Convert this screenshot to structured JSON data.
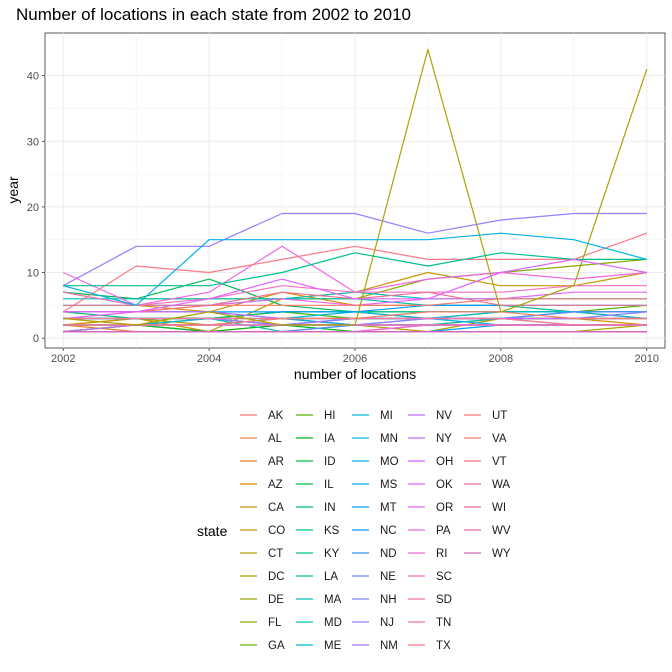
{
  "chart_data": {
    "type": "line",
    "title": "Number of locations in each state from 2002 to 2010",
    "xlabel": "number of locations",
    "ylabel": "year",
    "xlim": [
      2001.75,
      2010.25
    ],
    "ylim": [
      -1.5,
      46.5
    ],
    "x_ticks": [
      2002,
      2004,
      2006,
      2008,
      2010
    ],
    "y_ticks": [
      0,
      10,
      20,
      30,
      40
    ],
    "grid": true,
    "legend_position": "bottom",
    "legend_title": "state",
    "x": [
      2002,
      2003,
      2004,
      2005,
      2006,
      2007,
      2008,
      2009,
      2010
    ],
    "series": [
      {
        "name": "AK",
        "color": "#F8766D",
        "values": [
          2,
          2,
          2,
          3,
          2,
          2,
          2,
          2,
          2
        ]
      },
      {
        "name": "AL",
        "color": "#F17D50",
        "values": [
          1,
          2,
          1,
          1,
          1,
          1,
          1,
          1,
          1
        ]
      },
      {
        "name": "AR",
        "color": "#E88526",
        "values": [
          2,
          1,
          1,
          2,
          2,
          2,
          3,
          3,
          3
        ]
      },
      {
        "name": "AZ",
        "color": "#DE8C00",
        "values": [
          2,
          3,
          3,
          2,
          2,
          3,
          3,
          3,
          2
        ]
      },
      {
        "name": "CA",
        "color": "#D39200",
        "values": [
          7,
          5,
          4,
          7,
          5,
          5,
          5,
          4,
          3
        ]
      },
      {
        "name": "CO",
        "color": "#C79800",
        "values": [
          2,
          3,
          1,
          6,
          7,
          10,
          8,
          8,
          10
        ]
      },
      {
        "name": "CT",
        "color": "#B99E00",
        "values": [
          3,
          3,
          2,
          3,
          2,
          1,
          3,
          3,
          3
        ]
      },
      {
        "name": "DC",
        "color": "#AAA300",
        "values": [
          1,
          2,
          1,
          1,
          1,
          1,
          1,
          1,
          2
        ]
      },
      {
        "name": "DE",
        "color": "#99A800",
        "values": [
          2,
          2,
          3,
          2,
          3,
          3,
          3,
          3,
          3
        ]
      },
      {
        "name": "FL",
        "color": "#86AC00",
        "values": [
          7,
          6,
          6,
          6,
          6,
          9,
          10,
          11,
          12
        ]
      },
      {
        "name": "GA",
        "color": "#70B000",
        "values": [
          1,
          2,
          3,
          4,
          4,
          3,
          3,
          4,
          4
        ]
      },
      {
        "name": "HI",
        "color": "#53B400",
        "values": [
          3,
          3,
          3,
          4,
          3,
          3,
          4,
          4,
          5
        ]
      },
      {
        "name": "IA",
        "color": "#00B81F",
        "values": [
          1,
          1,
          1,
          2,
          1,
          1,
          1,
          1,
          1
        ]
      },
      {
        "name": "ID",
        "color": "#00BA42",
        "values": [
          1,
          2,
          1,
          1,
          1,
          2,
          2,
          2,
          2
        ]
      },
      {
        "name": "IL",
        "color": "#00BC5A",
        "values": [
          7,
          6,
          9,
          5,
          4,
          4,
          4,
          4,
          4
        ]
      },
      {
        "name": "IN",
        "color": "#00BE6E",
        "values": [
          3,
          3,
          3,
          3,
          3,
          3,
          3,
          2,
          2
        ]
      },
      {
        "name": "KS",
        "color": "#00C080",
        "values": [
          4,
          3,
          3,
          4,
          4,
          4,
          4,
          4,
          4
        ]
      },
      {
        "name": "KY",
        "color": "#00C090",
        "values": [
          3,
          3,
          3,
          3,
          3,
          4,
          4,
          4,
          4
        ]
      },
      {
        "name": "LA",
        "color": "#00C1A0",
        "values": [
          3,
          3,
          3,
          1,
          2,
          2,
          3,
          3,
          3
        ]
      },
      {
        "name": "MA",
        "color": "#00C0AF",
        "values": [
          5,
          5,
          5,
          6,
          6,
          5,
          5,
          4,
          4
        ]
      },
      {
        "name": "MD",
        "color": "#00BFBC",
        "values": [
          6,
          6,
          6,
          6,
          7,
          6,
          6,
          6,
          6
        ]
      },
      {
        "name": "ME",
        "color": "#00BDC9",
        "values": [
          2,
          2,
          2,
          2,
          2,
          2,
          2,
          2,
          2
        ]
      },
      {
        "name": "MI",
        "color": "#00BAD5",
        "values": [
          4,
          4,
          4,
          3,
          4,
          3,
          4,
          4,
          3
        ]
      },
      {
        "name": "MN",
        "color": "#00B6E0",
        "values": [
          2,
          2,
          3,
          2,
          3,
          3,
          3,
          4,
          4
        ]
      },
      {
        "name": "MO",
        "color": "#00B0EA",
        "values": [
          3,
          3,
          3,
          2,
          3,
          3,
          2,
          2,
          2
        ]
      },
      {
        "name": "MS",
        "color": "#00AAF3",
        "values": [
          2,
          2,
          2,
          3,
          2,
          2,
          2,
          2,
          2
        ]
      },
      {
        "name": "MT",
        "color": "#00A3FA",
        "values": [
          1,
          1,
          1,
          1,
          1,
          1,
          2,
          2,
          2
        ]
      },
      {
        "name": "NC",
        "color": "#009BFF",
        "values": [
          4,
          4,
          4,
          4,
          4,
          5,
          5,
          5,
          5
        ]
      },
      {
        "name": "ND",
        "color": "#2B92FF",
        "values": [
          1,
          1,
          1,
          1,
          1,
          1,
          1,
          1,
          1
        ]
      },
      {
        "name": "NE",
        "color": "#6189FF",
        "values": [
          1,
          1,
          1,
          1,
          2,
          3,
          3,
          4,
          4
        ]
      },
      {
        "name": "NH",
        "color": "#8183FF",
        "values": [
          2,
          2,
          2,
          2,
          2,
          3,
          3,
          3,
          4
        ]
      },
      {
        "name": "NJ",
        "color": "#977DFF",
        "values": [
          8,
          14,
          14,
          19,
          19,
          16,
          18,
          19,
          19
        ]
      },
      {
        "name": "NM",
        "color": "#A874FF",
        "values": [
          3,
          3,
          3,
          2,
          3,
          3,
          3,
          3,
          3
        ]
      },
      {
        "name": "NV",
        "color": "#B86DFF",
        "values": [
          1,
          2,
          2,
          2,
          2,
          2,
          2,
          2,
          2
        ]
      },
      {
        "name": "NY",
        "color": "#C767FF",
        "values": [
          4,
          4,
          4,
          3,
          3,
          3,
          3,
          3,
          3
        ]
      },
      {
        "name": "OH",
        "color": "#D463FF",
        "values": [
          1,
          1,
          1,
          1,
          1,
          2,
          2,
          2,
          2
        ]
      },
      {
        "name": "OK",
        "color": "#E063FF",
        "values": [
          2,
          2,
          2,
          2,
          2,
          2,
          2,
          2,
          2
        ]
      },
      {
        "name": "OR",
        "color": "#E865F2",
        "values": [
          3,
          4,
          5,
          6,
          5,
          6,
          6,
          7,
          7
        ]
      },
      {
        "name": "PA",
        "color": "#EF67E3",
        "values": [
          10,
          5,
          7,
          14,
          7,
          9,
          10,
          9,
          10
        ]
      },
      {
        "name": "RI",
        "color": "#F46BD3",
        "values": [
          1,
          1,
          1,
          1,
          1,
          2,
          2,
          2,
          2
        ]
      },
      {
        "name": "SC",
        "color": "#F86FC2",
        "values": [
          7,
          5,
          6,
          8,
          7,
          7,
          7,
          8,
          8
        ]
      },
      {
        "name": "SD",
        "color": "#FB71AF",
        "values": [
          2,
          2,
          2,
          2,
          2,
          2,
          2,
          2,
          2
        ]
      },
      {
        "name": "TN",
        "color": "#FD759B",
        "values": [
          3,
          3,
          3,
          3,
          3,
          3,
          3,
          2,
          2
        ]
      },
      {
        "name": "TX",
        "color": "#FD7986",
        "values": [
          4,
          11,
          10,
          12,
          14,
          12,
          12,
          12,
          16
        ]
      },
      {
        "name": "UT",
        "color": "#FB7C70",
        "values": [
          2,
          2,
          2,
          3,
          3,
          4,
          4,
          3,
          3
        ]
      },
      {
        "name": "VA",
        "color": "#F8766D",
        "values": [
          4,
          4,
          5,
          5,
          5,
          5,
          6,
          6,
          6
        ]
      },
      {
        "name": "VT",
        "color": "#F4727E",
        "values": [
          1,
          1,
          1,
          1,
          1,
          1,
          1,
          1,
          1
        ]
      },
      {
        "name": "WA",
        "color": "#EE6E8F",
        "values": [
          5,
          5,
          5,
          7,
          6,
          7,
          5,
          5,
          5
        ]
      },
      {
        "name": "WI",
        "color": "#E66B9F",
        "values": [
          1,
          1,
          1,
          1,
          1,
          1,
          1,
          1,
          1
        ]
      },
      {
        "name": "WV",
        "color": "#DD69AE",
        "values": [
          1,
          1,
          1,
          1,
          1,
          1,
          1,
          1,
          1
        ]
      },
      {
        "name": "WY",
        "color": "#D268BC",
        "values": [
          1,
          1,
          1,
          1,
          1,
          1,
          1,
          1,
          1
        ]
      },
      {
        "name": "",
        "color": "#AAA300",
        "values": [
          3,
          2,
          4,
          2,
          2,
          44,
          4,
          8,
          41
        ]
      },
      {
        "name": "",
        "color": "#00B0EA",
        "values": [
          8,
          5,
          15,
          15,
          15,
          15,
          16,
          15,
          12
        ]
      },
      {
        "name": "",
        "color": "#00C090",
        "values": [
          8,
          8,
          8,
          10,
          13,
          11,
          13,
          12,
          12
        ]
      },
      {
        "name": "",
        "color": "#E063FF",
        "values": [
          4,
          4,
          6,
          9,
          6,
          6,
          10,
          12,
          10
        ]
      }
    ]
  }
}
